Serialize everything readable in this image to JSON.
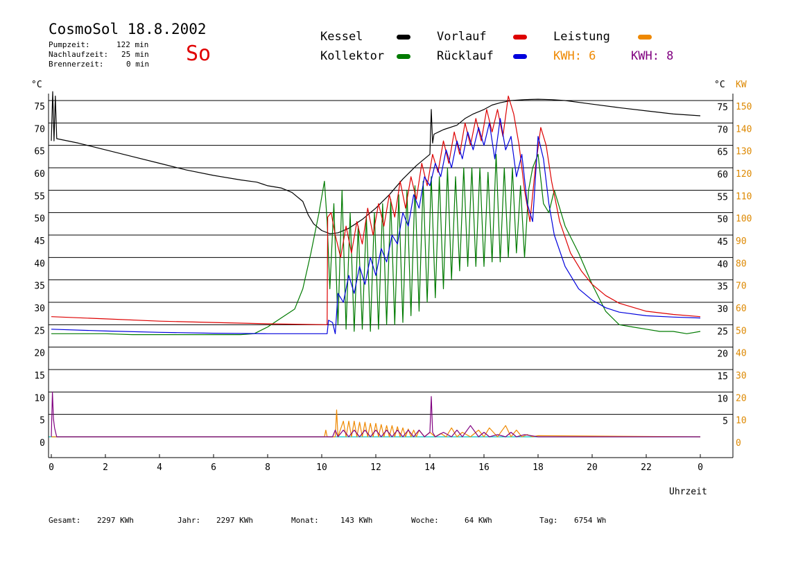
{
  "header": {
    "title": "CosmoSol 18.8.2002",
    "day": "So",
    "pumpzeit_label": "Pumpzeit:",
    "pumpzeit_value": "122 min",
    "nachlaufzeit_label": "Nachlaufzeit:",
    "nachlaufzeit_value": "25 min",
    "brennerzeit_label": "Brennerzeit:",
    "brennerzeit_value": "0 min"
  },
  "legend": {
    "kessel": "Kessel",
    "kollektor": "Kollektor",
    "vorlauf": "Vorlauf",
    "ruecklauf": "Rücklauf",
    "leistung": "Leistung",
    "kwh_orange": "KWH: 6",
    "kwh_purple": "KWH: 8"
  },
  "axes": {
    "left_unit": "°C",
    "right_unit": "°C",
    "right_unit2": "KW",
    "xlabel": "Uhrzeit"
  },
  "footer": {
    "gesamt_label": "Gesamt:",
    "gesamt_value": "2297 KWh",
    "jahr_label": "Jahr:",
    "jahr_value": "2297 KWh",
    "monat_label": "Monat:",
    "monat_value": "143 KWh",
    "woche_label": "Woche:",
    "woche_value": "64 KWh",
    "tag_label": "Tag:",
    "tag_value": "6754 Wh"
  },
  "colors": {
    "kessel": "#000000",
    "kollektor": "#007a00",
    "vorlauf": "#dd0000",
    "ruecklauf": "#0000dd",
    "leistung": "#ee8800",
    "kwh_purple": "#800080",
    "baseline": "#00c8c8",
    "kw_axis": "#dd8800"
  },
  "chart_data": {
    "type": "line",
    "x_unit": "h",
    "xlim": [
      0,
      24
    ],
    "ylim_left": [
      0,
      75
    ],
    "ylim_right_kw": [
      0,
      150
    ],
    "grid": true,
    "x_ticks": [
      "0",
      "2",
      "4",
      "6",
      "8",
      "10",
      "12",
      "14",
      "16",
      "18",
      "20",
      "22",
      "0"
    ],
    "y_ticks_left": [
      "0",
      "5",
      "10",
      "15",
      "20",
      "25",
      "30",
      "35",
      "40",
      "45",
      "50",
      "55",
      "60",
      "65",
      "70",
      "75"
    ],
    "y_ticks_right": [
      "5",
      "10",
      "15",
      "20",
      "25",
      "30",
      "35",
      "40",
      "45",
      "50",
      "55",
      "60",
      "65",
      "70",
      "75"
    ],
    "y_ticks_kw": [
      "0",
      "10",
      "20",
      "30",
      "40",
      "50",
      "60",
      "70",
      "80",
      "90",
      "100",
      "110",
      "120",
      "130",
      "140",
      "150"
    ],
    "series": [
      {
        "name": "Kessel",
        "color": "#000000",
        "x": [
          0,
          0.05,
          0.1,
          0.15,
          0.2,
          1,
          2,
          3,
          4,
          5,
          6,
          7,
          7.6,
          8,
          8.5,
          8.9,
          9.3,
          9.5,
          9.7,
          10,
          10.3,
          10.6,
          11,
          11.5,
          12,
          12.5,
          13,
          13.5,
          14,
          14.05,
          14.1,
          14.15,
          14.5,
          15,
          15.3,
          15.6,
          16,
          16.3,
          16.6,
          17,
          17.5,
          18,
          18.5,
          19,
          20,
          21,
          22,
          23,
          24
        ],
        "y": [
          66,
          77,
          66,
          76,
          66.5,
          65.5,
          64,
          62.5,
          61,
          59.5,
          58.3,
          57.3,
          56.8,
          56,
          55.5,
          54.5,
          52.5,
          49.5,
          47.5,
          46,
          45.3,
          45.5,
          46.5,
          48.5,
          51,
          54,
          57.5,
          60.5,
          63,
          73,
          65.5,
          67.5,
          68.5,
          69.5,
          71,
          72,
          73,
          74,
          74.5,
          75,
          75.2,
          75.3,
          75.2,
          75,
          74.2,
          73.4,
          72.7,
          72,
          71.6
        ]
      },
      {
        "name": "Kollektor",
        "color": "#007a00",
        "x": [
          0,
          1,
          2,
          3,
          4,
          5,
          6,
          7,
          7.5,
          8,
          8.5,
          9,
          9.3,
          9.6,
          9.9,
          10.1,
          10.2,
          10.3,
          10.45,
          10.6,
          10.75,
          10.9,
          11.05,
          11.2,
          11.35,
          11.5,
          11.65,
          11.8,
          11.95,
          12.1,
          12.25,
          12.4,
          12.55,
          12.7,
          12.85,
          13,
          13.15,
          13.3,
          13.45,
          13.6,
          13.75,
          13.9,
          14.05,
          14.2,
          14.35,
          14.5,
          14.65,
          14.8,
          14.95,
          15.1,
          15.25,
          15.4,
          15.55,
          15.7,
          15.85,
          16,
          16.15,
          16.3,
          16.45,
          16.6,
          16.75,
          16.9,
          17.05,
          17.2,
          17.35,
          17.5,
          17.65,
          17.8,
          18,
          18.2,
          18.4,
          18.6,
          18.8,
          19,
          19.5,
          20,
          20.5,
          21,
          21.5,
          22,
          22.5,
          23,
          23.5,
          24
        ],
        "y": [
          23,
          23,
          23,
          22.8,
          22.8,
          22.8,
          22.8,
          22.8,
          23,
          24.5,
          26.5,
          28.5,
          33,
          41,
          50,
          57,
          48,
          33,
          52,
          25,
          55,
          24,
          50,
          23.5,
          47,
          24,
          49,
          23.5,
          50,
          24,
          52,
          25,
          53,
          25,
          54,
          25.5,
          55,
          27,
          56,
          28,
          57,
          30,
          58,
          31,
          58,
          33,
          60,
          35,
          58,
          37,
          60,
          38,
          60,
          38,
          60,
          38,
          59,
          39,
          63,
          39,
          60,
          40,
          60,
          41,
          56,
          40,
          55,
          60,
          63,
          52,
          50,
          55,
          51,
          47,
          41,
          34,
          28,
          25,
          24.5,
          24,
          23.5,
          23.5,
          23,
          23.5
        ]
      },
      {
        "name": "Vorlauf",
        "color": "#dd0000",
        "x": [
          0,
          2,
          4,
          6,
          8,
          10.2,
          10.22,
          10.35,
          10.5,
          10.7,
          10.9,
          11.1,
          11.3,
          11.5,
          11.7,
          11.9,
          12.1,
          12.3,
          12.5,
          12.7,
          12.9,
          13.1,
          13.3,
          13.5,
          13.7,
          13.9,
          14.1,
          14.3,
          14.5,
          14.7,
          14.9,
          15.1,
          15.3,
          15.5,
          15.7,
          15.9,
          16.1,
          16.3,
          16.5,
          16.7,
          16.9,
          17.1,
          17.3,
          17.5,
          17.7,
          17.9,
          18.1,
          18.3,
          18.5,
          18.8,
          19.2,
          19.6,
          20,
          20.5,
          21,
          22,
          23,
          24
        ],
        "y": [
          26.8,
          26.3,
          25.8,
          25.5,
          25.2,
          25,
          49,
          50,
          45,
          40,
          47,
          41,
          48,
          43,
          51,
          45,
          52,
          47,
          54,
          49,
          57,
          51,
          58,
          53,
          61,
          56,
          63,
          59,
          66,
          61,
          68,
          63,
          70,
          65,
          71,
          66,
          73,
          68,
          73,
          67,
          76,
          72,
          65,
          55,
          48,
          60,
          69,
          65,
          57,
          48,
          41,
          37,
          34,
          31.5,
          29.8,
          28,
          27.3,
          26.8
        ]
      },
      {
        "name": "Rücklauf",
        "color": "#0000dd",
        "x": [
          0,
          2,
          4,
          6,
          8,
          10.2,
          10.25,
          10.4,
          10.5,
          10.6,
          10.8,
          11,
          11.2,
          11.4,
          11.6,
          11.8,
          12,
          12.2,
          12.4,
          12.6,
          12.8,
          13,
          13.2,
          13.4,
          13.6,
          13.8,
          14,
          14.2,
          14.4,
          14.6,
          14.8,
          15,
          15.2,
          15.4,
          15.6,
          15.8,
          16,
          16.2,
          16.4,
          16.6,
          16.8,
          17,
          17.2,
          17.4,
          17.6,
          17.8,
          18,
          18.2,
          18.4,
          18.6,
          19,
          19.5,
          20,
          20.5,
          21,
          22,
          23,
          24
        ],
        "y": [
          24,
          23.6,
          23.3,
          23.1,
          23,
          23,
          26,
          25.5,
          23,
          32,
          30,
          36,
          32,
          38,
          34,
          40,
          36,
          42,
          39,
          45,
          43,
          50,
          47,
          54,
          51,
          58,
          56,
          61,
          58,
          64,
          60,
          66,
          62,
          68,
          64,
          69,
          65,
          70,
          62,
          71,
          64,
          67,
          58,
          63,
          52,
          48,
          67,
          62,
          52,
          45,
          38,
          33,
          30.5,
          28.8,
          27.8,
          27,
          26.7,
          26.5
        ]
      },
      {
        "name": "Leistung",
        "color": "#ee8800",
        "axis": "kw",
        "x": [
          0,
          10.1,
          10.15,
          10.2,
          10.5,
          10.55,
          10.6,
          10.8,
          10.9,
          11,
          11.1,
          11.2,
          11.3,
          11.4,
          11.5,
          11.6,
          11.7,
          11.8,
          11.9,
          12,
          12.1,
          12.2,
          12.3,
          12.4,
          12.5,
          12.6,
          12.7,
          12.8,
          12.9,
          13,
          13.1,
          13.2,
          13.3,
          13.4,
          13.5,
          13.6,
          13.8,
          14,
          14.2,
          14.4,
          14.6,
          14.8,
          15,
          15.2,
          15.5,
          15.8,
          16,
          16.2,
          16.5,
          16.8,
          17,
          17.2,
          17.4,
          17.6,
          17.8,
          18,
          24
        ],
        "y": [
          0,
          0,
          3,
          0,
          0,
          12,
          0,
          7,
          0,
          7,
          0,
          7,
          0,
          6.5,
          0,
          6.5,
          0,
          6,
          0,
          6,
          0,
          5.5,
          0,
          5,
          0,
          5,
          0,
          4.5,
          0,
          4,
          0,
          3.5,
          0,
          3,
          0,
          3,
          0,
          2,
          0,
          1.5,
          0,
          4,
          0,
          2,
          0,
          3,
          0,
          4,
          0,
          5,
          0,
          3,
          0,
          1,
          0,
          0.5,
          0
        ]
      },
      {
        "name": "KWH: 8",
        "color": "#800080",
        "axis": "kw",
        "x": [
          0,
          0.04,
          0.08,
          0.12,
          0.16,
          0.2,
          10.4,
          10.5,
          10.6,
          10.8,
          11,
          11.2,
          11.4,
          11.6,
          11.8,
          12,
          12.2,
          12.4,
          12.6,
          12.8,
          13,
          13.2,
          13.4,
          13.6,
          13.8,
          14,
          14.05,
          14.1,
          14.2,
          14.5,
          14.8,
          15,
          15.2,
          15.5,
          15.8,
          16,
          16.2,
          16.5,
          16.8,
          17,
          17.2,
          17.5,
          18,
          24
        ],
        "y": [
          0,
          20,
          8,
          4,
          2,
          0,
          0,
          3,
          0,
          3,
          0,
          3,
          0,
          3,
          0,
          3,
          0,
          3,
          0,
          3,
          0,
          3,
          0,
          3,
          0,
          2,
          18,
          2,
          0,
          2,
          0,
          3,
          0,
          5,
          0,
          2,
          0,
          1,
          0,
          2,
          0,
          1,
          0,
          0
        ]
      }
    ]
  }
}
